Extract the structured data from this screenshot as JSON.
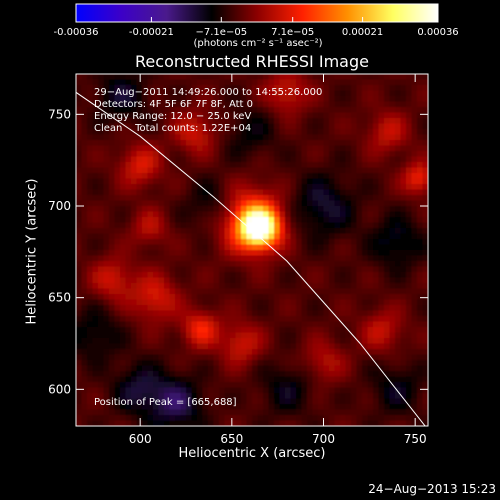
{
  "chart_data": {
    "type": "heatmap",
    "title": "Reconstructed RHESSI Image",
    "xlabel": "Heliocentric X (arcsec)",
    "ylabel": "Heliocentric Y (arcsec)",
    "xlim": [
      565,
      757
    ],
    "ylim": [
      580,
      772
    ],
    "x_ticks": [
      600,
      650,
      700,
      750
    ],
    "y_ticks": [
      600,
      650,
      700,
      750
    ],
    "x_tick_labels": [
      "600",
      "650",
      "700",
      "750"
    ],
    "y_tick_labels": [
      "600",
      "650",
      "700",
      "750"
    ],
    "colorbar": {
      "range": [
        -0.00036,
        0.00036
      ],
      "tick_values": [
        -0.00036,
        -0.00021,
        -7.1e-05,
        7.1e-05,
        0.00021,
        0.00036
      ],
      "tick_labels": [
        "-0.00036",
        "-0.00021",
        "−7.1e−05",
        "7.1e−05",
        "0.00021",
        "0.00036"
      ],
      "unit_label": "(photons cm⁻² s⁻¹ asec⁻²)",
      "colors": [
        "#0000ff",
        "#3c00c8",
        "#4a1a8c",
        "#000000",
        "#8c0000",
        "#ff2000",
        "#ff9000",
        "#ffff60",
        "#ffffff"
      ]
    },
    "annotations": [
      "29−Aug−2011 14:49:26.000 to 14:55:26.000",
      "Detectors: 4F 5F 6F 7F 8F, Att 0",
      "Energy Range: 12.0 − 25.0 keV",
      "Clean    Total counts: 1.22E+04"
    ],
    "peak_label": "Position of Peak = [665,688]",
    "peak": {
      "x": 665,
      "y": 688,
      "value": 0.00036
    },
    "limb_curve": [
      [
        565,
        762
      ],
      [
        600,
        738
      ],
      [
        640,
        705
      ],
      [
        680,
        670
      ],
      [
        720,
        625
      ],
      [
        757,
        578
      ]
    ],
    "blobs": [
      {
        "x": 665,
        "y": 688,
        "v": 0.00036,
        "s": 7
      },
      {
        "x": 660,
        "y": 692,
        "v": 0.00018,
        "s": 12
      },
      {
        "x": 633,
        "y": 633,
        "v": 0.00012,
        "s": 7
      },
      {
        "x": 608,
        "y": 650,
        "v": 0.0001,
        "s": 9
      },
      {
        "x": 585,
        "y": 660,
        "v": 9e-05,
        "s": 8
      },
      {
        "x": 655,
        "y": 625,
        "v": 9e-05,
        "s": 8
      },
      {
        "x": 600,
        "y": 722,
        "v": 0.0001,
        "s": 8
      },
      {
        "x": 630,
        "y": 740,
        "v": 9e-05,
        "s": 8
      },
      {
        "x": 680,
        "y": 762,
        "v": 9e-05,
        "s": 8
      },
      {
        "x": 735,
        "y": 740,
        "v": 8e-05,
        "s": 8
      },
      {
        "x": 752,
        "y": 715,
        "v": 0.00012,
        "s": 6
      },
      {
        "x": 732,
        "y": 632,
        "v": 8e-05,
        "s": 8
      },
      {
        "x": 605,
        "y": 688,
        "v": 7e-05,
        "s": 7
      },
      {
        "x": 700,
        "y": 615,
        "v": 7e-05,
        "s": 8
      },
      {
        "x": 620,
        "y": 592,
        "v": -0.0001,
        "s": 10
      },
      {
        "x": 600,
        "y": 600,
        "v": -8e-05,
        "s": 10
      },
      {
        "x": 700,
        "y": 700,
        "v": -8e-05,
        "s": 12
      },
      {
        "x": 590,
        "y": 760,
        "v": -7e-05,
        "s": 10
      },
      {
        "x": 640,
        "y": 700,
        "v": -6e-05,
        "s": 10
      },
      {
        "x": 740,
        "y": 680,
        "v": -7e-05,
        "s": 10
      },
      {
        "x": 680,
        "y": 600,
        "v": -6e-05,
        "s": 10
      },
      {
        "x": 740,
        "y": 600,
        "v": -6e-05,
        "s": 10
      },
      {
        "x": 575,
        "y": 630,
        "v": -6e-05,
        "s": 10
      },
      {
        "x": 660,
        "y": 740,
        "v": -5e-05,
        "s": 10
      }
    ]
  },
  "footer": {
    "timestamp": "24−Aug−2013 15:23"
  }
}
